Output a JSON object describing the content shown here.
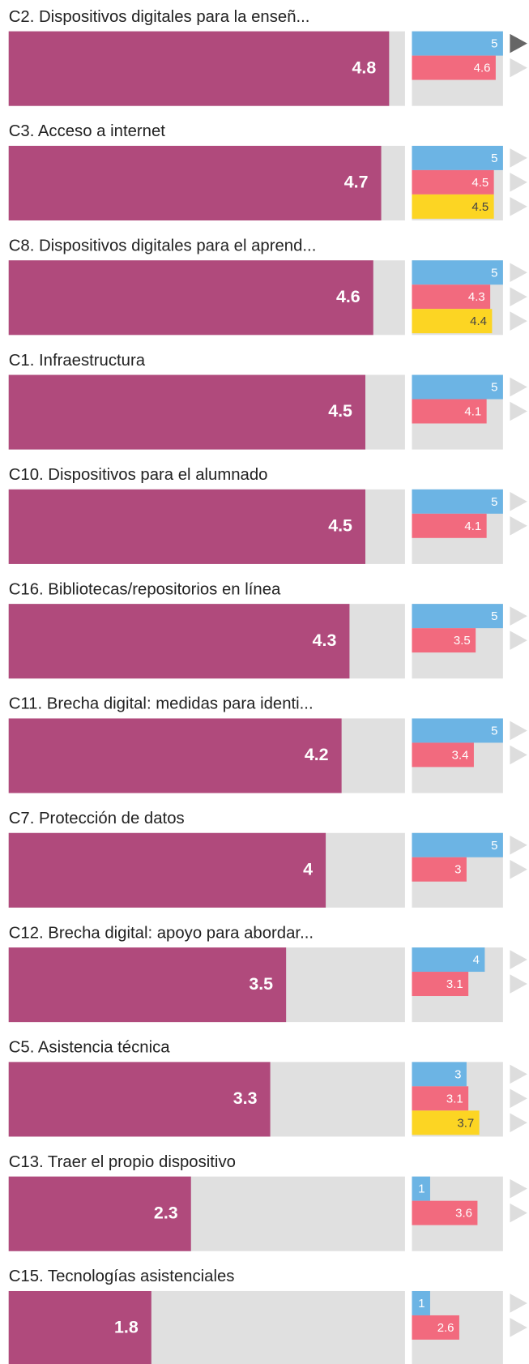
{
  "chart_data": {
    "type": "bar",
    "categories": [
      "C2. Dispositivos digitales para la enseñ...",
      "C3. Acceso a internet",
      "C8. Dispositivos digitales para el aprend...",
      "C1. Infraestructura",
      "C10. Dispositivos para el alumnado",
      "C16. Bibliotecas/repositorios en línea",
      "C11. Brecha digital: medidas para identi...",
      "C7. Protección de datos",
      "C12. Brecha digital: apoyo para abordar...",
      "C5. Asistencia técnica",
      "C13. Traer el propio dispositivo",
      "C15. Tecnologías asistenciales"
    ],
    "xlim": [
      0,
      5
    ],
    "series": [
      {
        "color": "#b04a7c",
        "values": [
          4.8,
          4.7,
          4.6,
          4.5,
          4.5,
          4.3,
          4.2,
          4,
          3.5,
          3.3,
          2.3,
          1.8
        ]
      },
      {
        "color": "#6cb4e4",
        "values": [
          5,
          5,
          5,
          5,
          5,
          5,
          5,
          5,
          4,
          3,
          1,
          1
        ]
      },
      {
        "color": "#f26a7e",
        "values": [
          4.6,
          4.5,
          4.3,
          4.1,
          4.1,
          3.5,
          3.4,
          3,
          3.1,
          3.1,
          3.6,
          2.6
        ]
      },
      {
        "color": "#fcd523",
        "values": [
          null,
          4.5,
          4.4,
          null,
          null,
          null,
          null,
          null,
          null,
          3.7,
          null,
          null
        ]
      }
    ]
  }
}
